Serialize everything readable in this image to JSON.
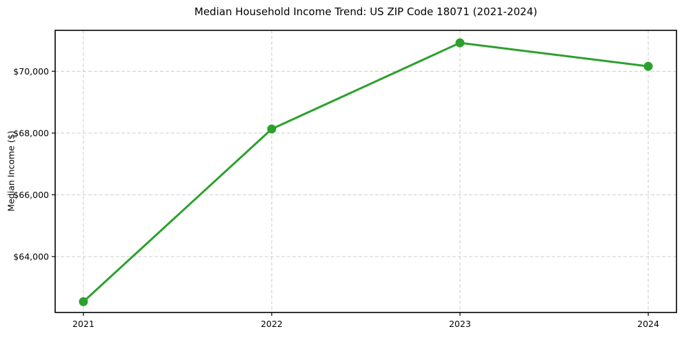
{
  "chart_data": {
    "type": "line",
    "title": "Median Household Income Trend: US ZIP Code 18071 (2021-2024)",
    "xlabel": "",
    "ylabel": "Median Income ($)",
    "x": [
      2021,
      2022,
      2023,
      2024
    ],
    "values": [
      62540,
      68130,
      70920,
      70160
    ],
    "xtick_labels": [
      "2021",
      "2022",
      "2023",
      "2024"
    ],
    "yticks": [
      64000,
      66000,
      68000,
      70000
    ],
    "ytick_labels": [
      "$64,000",
      "$66,000",
      "$68,000",
      "$70,000"
    ],
    "xlim": [
      2020.85,
      2024.15
    ],
    "ylim": [
      62190,
      71325
    ],
    "grid": true,
    "grid_style": "dashed",
    "legend": false,
    "marker": "circle",
    "marker_size": 13,
    "line_width": 3,
    "colors": {
      "line": "#2ca02c",
      "grid": "#cccccc",
      "spine": "#000000",
      "text": "#000000",
      "background": "#ffffff"
    }
  }
}
